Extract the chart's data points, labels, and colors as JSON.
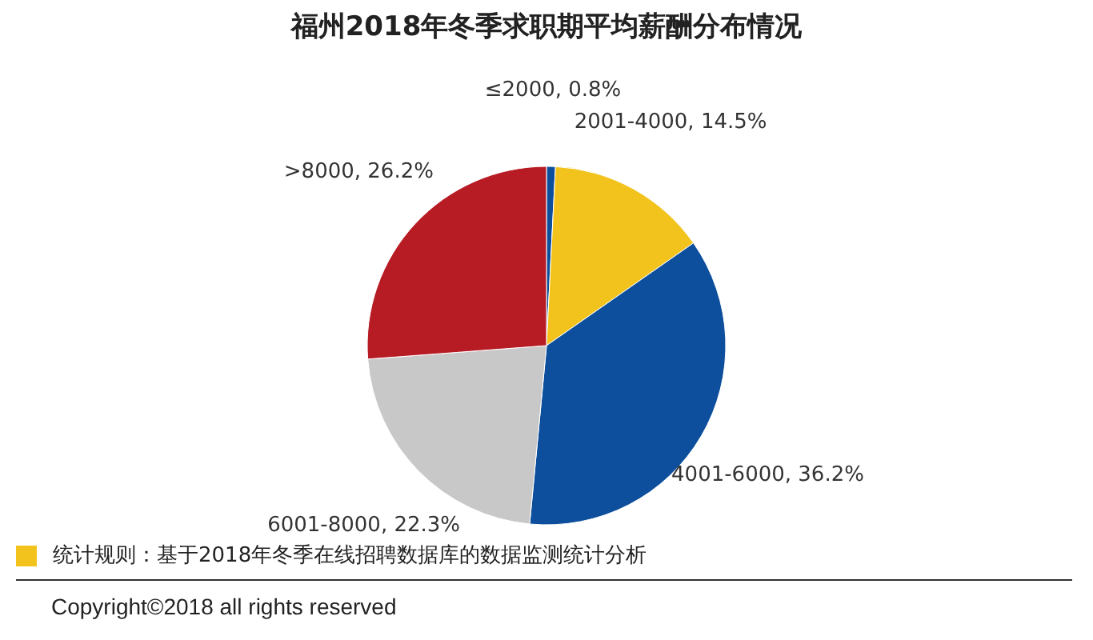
{
  "chart_data": {
    "type": "pie",
    "title": "福州2018年冬季求职期平均薪酬分布情况",
    "categories": [
      "≤2000",
      "2001-4000",
      "4001-6000",
      "6001-8000",
      ">8000"
    ],
    "values": [
      0.8,
      14.5,
      36.2,
      22.3,
      26.2
    ],
    "colors": [
      "#0d4f9c",
      "#f2c31c",
      "#0d4f9c",
      "#c8c8c8",
      "#b71c25"
    ],
    "value_labels": [
      "0.8%",
      "14.5%",
      "36.2%",
      "22.3%",
      "26.2%"
    ],
    "annotations": [
      "统计规则：基于2018年冬季在线招聘数据库的数据监测统计分析",
      "Copyright©2018 all rights reserved"
    ]
  }
}
